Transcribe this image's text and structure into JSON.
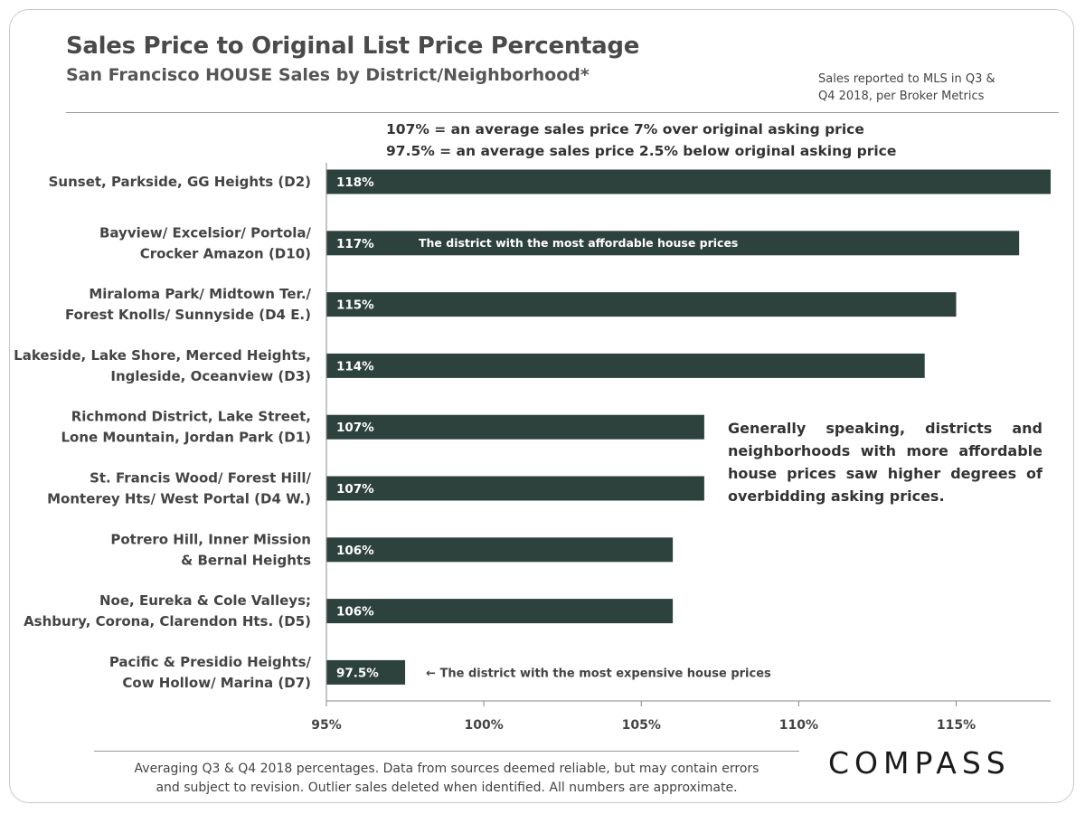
{
  "header": {
    "title": "Sales Price to Original List Price Percentage",
    "subtitle": "San Francisco HOUSE Sales by District/Neighborhood*",
    "source_line1": "Sales reported to MLS in Q3 &",
    "source_line2": "Q4 2018, per Broker Metrics"
  },
  "notes": {
    "line1": "107% = an average sales price 7% over original asking price",
    "line2": "97.5% = an average sales price 2.5% below original asking price"
  },
  "side_note": "Generally speaking, districts and neighborhoods with more affordable house prices saw higher degrees of overbidding asking prices.",
  "footer": {
    "line1": "Averaging Q3 & Q4 2018 percentages. Data from sources deemed reliable, but may contain errors",
    "line2": "and subject to revision. Outlier sales deleted  when identified. All  numbers are approximate."
  },
  "logo": "COMPASS",
  "chart_data": {
    "type": "bar",
    "orientation": "horizontal",
    "categories": [
      [
        "Sunset, Parkside, GG Heights (D2)"
      ],
      [
        "Bayview/ Excelsior/ Portola/",
        "Crocker Amazon (D10)"
      ],
      [
        "Miraloma Park/ Midtown Ter./",
        "Forest Knolls/ Sunnyside (D4 E.)"
      ],
      [
        "Lakeside, Lake Shore, Merced Heights,",
        "Ingleside, Oceanview (D3)"
      ],
      [
        "Richmond District, Lake Street,",
        "Lone Mountain, Jordan Park (D1)"
      ],
      [
        "St. Francis Wood/ Forest Hill/",
        "Monterey Hts/ West Portal (D4 W.)"
      ],
      [
        "Potrero Hill, Inner Mission",
        "& Bernal Heights"
      ],
      [
        "Noe, Eureka & Cole Valleys;",
        "Ashbury, Corona, Clarendon Hts. (D5)"
      ],
      [
        "Pacific & Presidio Heights/",
        "Cow Hollow/ Marina (D7)"
      ]
    ],
    "values": [
      118,
      117,
      115,
      114,
      107,
      107,
      106,
      106,
      97.5
    ],
    "value_labels": [
      "118%",
      "117%",
      "115%",
      "114%",
      "107%",
      "107%",
      "106%",
      "106%",
      "97.5%"
    ],
    "xlim": [
      95,
      118
    ],
    "x_ticks": [
      95,
      100,
      105,
      110,
      115
    ],
    "x_tick_labels": [
      "95%",
      "100%",
      "105%",
      "110%",
      "115%"
    ],
    "bar_color": "#2e423d",
    "annotations": [
      {
        "category_index": 1,
        "text": "The district with the most affordable house prices",
        "placement": "inside"
      },
      {
        "category_index": 8,
        "text": "← The district with the most expensive house prices",
        "placement": "outside"
      }
    ],
    "grid": false,
    "legend": "none"
  }
}
